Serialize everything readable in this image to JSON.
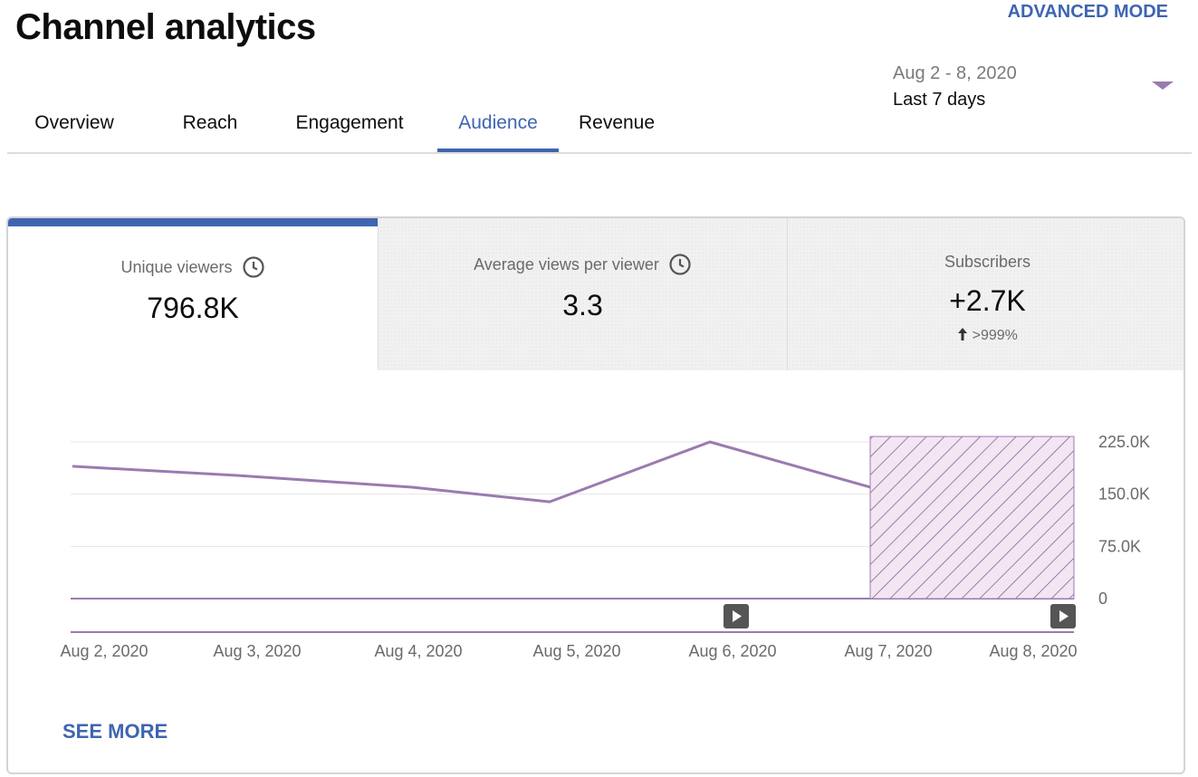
{
  "header": {
    "title": "Channel analytics",
    "advanced_mode": "ADVANCED MODE",
    "date_range": "Aug 2 - 8, 2020",
    "date_period": "Last 7 days"
  },
  "tabs": [
    {
      "label": "Overview"
    },
    {
      "label": "Reach"
    },
    {
      "label": "Engagement"
    },
    {
      "label": "Audience",
      "active": true
    },
    {
      "label": "Revenue"
    }
  ],
  "metrics": [
    {
      "label": "Unique viewers",
      "value": "796.8K",
      "icon": "clock-icon"
    },
    {
      "label": "Average views per viewer",
      "value": "3.3",
      "icon": "clock-icon"
    },
    {
      "label": "Subscribers",
      "value": "+2.7K",
      "delta": ">999%",
      "delta_icon": "arrow-up-icon"
    }
  ],
  "colors": {
    "accent": "#3e65b0",
    "series": "#9a7bb0",
    "hatch_fill": "#f3e6f2"
  },
  "chart_data": {
    "type": "line",
    "x": [
      "Aug 2, 2020",
      "Aug 3, 2020",
      "Aug 4, 2020",
      "Aug 5, 2020",
      "Aug 6, 2020",
      "Aug 7, 2020",
      "Aug 8, 2020"
    ],
    "series": [
      {
        "name": "Unique viewers",
        "values": [
          190000,
          177000,
          160000,
          139000,
          225000,
          160000,
          null
        ]
      }
    ],
    "yticks": [
      "225.0K",
      "150.0K",
      "75.0K",
      "0"
    ],
    "ytick_values": [
      225000,
      150000,
      75000,
      0
    ],
    "ylim": [
      0,
      225000
    ],
    "partial_data_from": "Aug 7, 2020",
    "grid": true
  },
  "footer": {
    "see_more": "SEE MORE"
  }
}
